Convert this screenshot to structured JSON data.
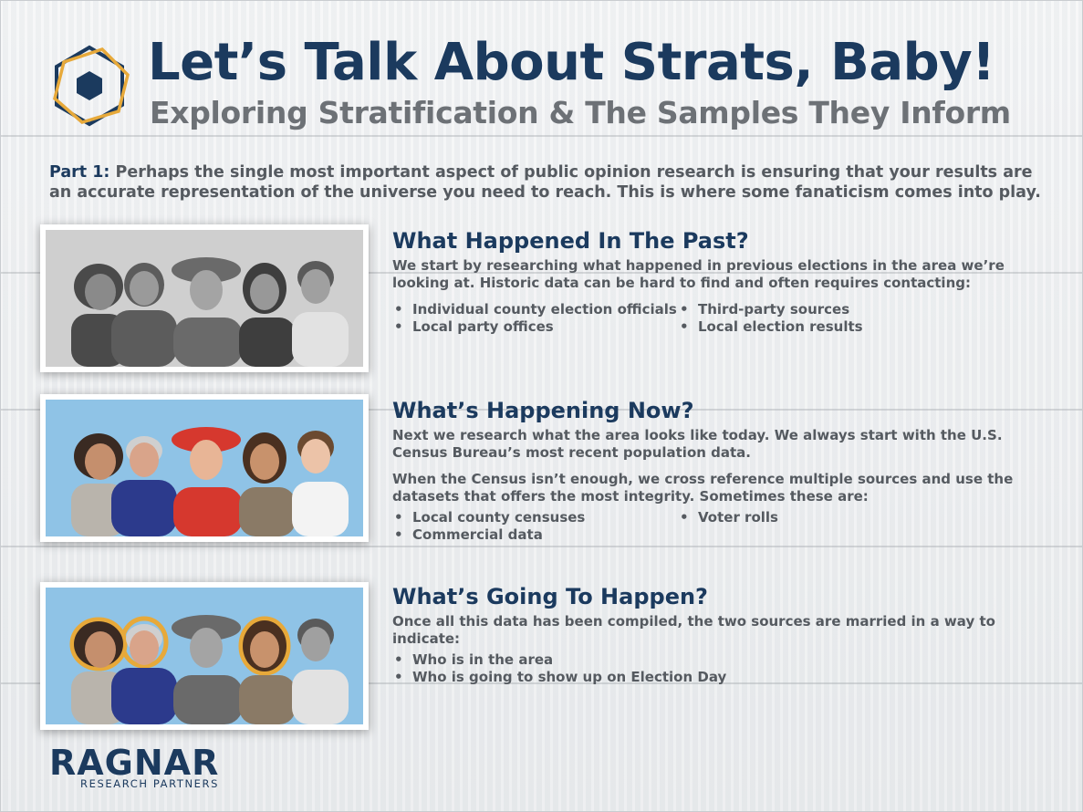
{
  "header": {
    "title": "Let’s Talk About Strats, Baby!",
    "subtitle": "Exploring Stratification & The Samples They Inform",
    "logo_icon": "hexagon-icon"
  },
  "intro": {
    "lead": "Part 1:",
    "text": "Perhaps the single most important aspect of public opinion research is ensuring that your results are an accurate representation of the universe you need to reach. This is where some fanaticism comes into play."
  },
  "sections": [
    {
      "heading": "What Happened In The Past?",
      "paragraphs": [
        "We start by researching what happened in previous elections in the area we’re looking at. Historic data can be hard to find and often requires contacting:"
      ],
      "bullets": [
        "Individual county election officials",
        "Third-party sources",
        "Local party offices",
        "Local election results"
      ]
    },
    {
      "heading": "What’s Happening Now?",
      "paragraphs": [
        "Next we research what the area looks like today. We always start with the U.S. Census Bureau’s most recent population data.",
        "When the Census isn’t enough, we cross reference multiple sources and use the datasets that offers the most integrity. Sometimes these are:"
      ],
      "bullets": [
        "Local county censuses",
        "Voter rolls",
        "Commercial data"
      ]
    },
    {
      "heading": "What’s Going To Happen?",
      "paragraphs": [
        "Once all this data has been compiled, the two sources are married in a way to indicate:"
      ],
      "bullets": [
        "Who is in the area",
        "Who is going to show up on Election Day"
      ]
    }
  ],
  "brand": {
    "name": "RAGNAR",
    "tagline": "RESEARCH PARTNERS"
  },
  "colors": {
    "navy": "#1b3a5e",
    "gray": "#6d7176",
    "accent_gold": "#e7a93a",
    "photo_blue": "#8fc3e6"
  }
}
